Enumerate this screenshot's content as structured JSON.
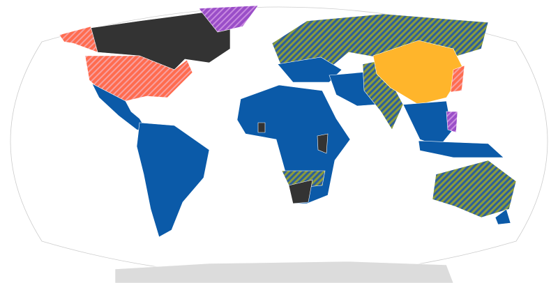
{
  "map": {
    "projection": "world-robinson-like",
    "colors": {
      "blue": "#0b5aa8",
      "orange": "#ffb52b",
      "black": "#333333",
      "salmon_hatch": "#ff6c4f",
      "purple_hatch": "#9a4ec8",
      "olive_blue_hatch": "#8a9b3c",
      "antarctica": "#dcdcdc",
      "ocean": "#ffffff"
    },
    "regions": [
      {
        "name": "canada",
        "fill": "black"
      },
      {
        "name": "alaska",
        "fill": "salmon_hatch"
      },
      {
        "name": "usa",
        "fill": "salmon_hatch"
      },
      {
        "name": "greenland",
        "fill": "purple_hatch"
      },
      {
        "name": "mexico-central-america",
        "fill": "blue"
      },
      {
        "name": "south-america",
        "fill": "blue"
      },
      {
        "name": "russia-europe",
        "fill": "olive_blue_hatch"
      },
      {
        "name": "europe-central",
        "fill": "blue"
      },
      {
        "name": "africa",
        "fill": "blue"
      },
      {
        "name": "southern-africa",
        "fill": "olive_blue_hatch"
      },
      {
        "name": "south-africa",
        "fill": "black"
      },
      {
        "name": "ghana",
        "fill": "black"
      },
      {
        "name": "ethiopia-kenya",
        "fill": "black"
      },
      {
        "name": "middle-east",
        "fill": "blue"
      },
      {
        "name": "india",
        "fill": "olive_blue_hatch"
      },
      {
        "name": "china",
        "fill": "orange"
      },
      {
        "name": "japan",
        "fill": "salmon_hatch"
      },
      {
        "name": "southeast-asia",
        "fill": "blue"
      },
      {
        "name": "philippines",
        "fill": "purple_hatch"
      },
      {
        "name": "indonesia",
        "fill": "blue"
      },
      {
        "name": "australia",
        "fill": "olive_blue_hatch"
      },
      {
        "name": "new-zealand",
        "fill": "blue"
      },
      {
        "name": "antarctica",
        "fill": "antarctica"
      }
    ]
  }
}
